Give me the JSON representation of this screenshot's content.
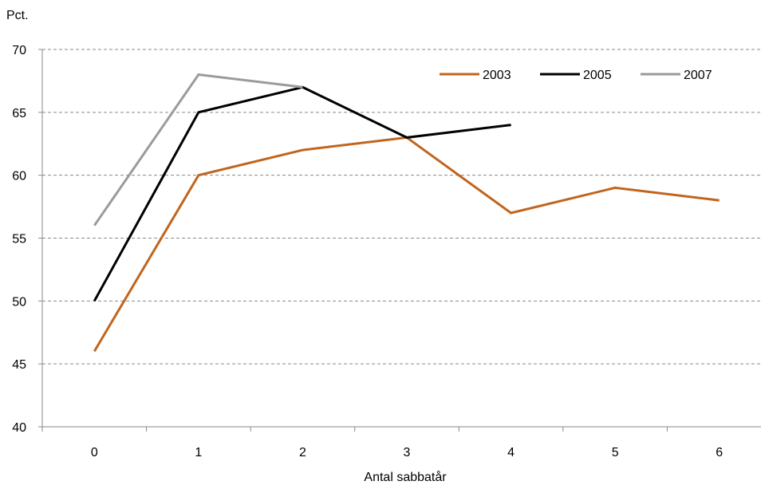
{
  "chart_data": {
    "type": "line",
    "ylabel": "Pct.",
    "xlabel": "Antal sabbatår",
    "x": [
      0,
      1,
      2,
      3,
      4,
      5,
      6
    ],
    "ylim": [
      40,
      70
    ],
    "yticks": [
      40,
      45,
      50,
      55,
      60,
      65,
      70
    ],
    "grid": "horizontal dashed",
    "legend_position": "top-right",
    "series": [
      {
        "name": "2003",
        "color": "#C0651E",
        "x": [
          0,
          1,
          2,
          3,
          4,
          5,
          6
        ],
        "values": [
          46,
          60,
          62,
          63,
          57,
          59,
          58
        ]
      },
      {
        "name": "2005",
        "color": "#000000",
        "x": [
          0,
          1,
          2,
          3,
          4
        ],
        "values": [
          50,
          65,
          67,
          63,
          64
        ]
      },
      {
        "name": "2007",
        "color": "#9B9B9B",
        "x": [
          0,
          1,
          2
        ],
        "values": [
          56,
          68,
          67
        ]
      }
    ]
  }
}
